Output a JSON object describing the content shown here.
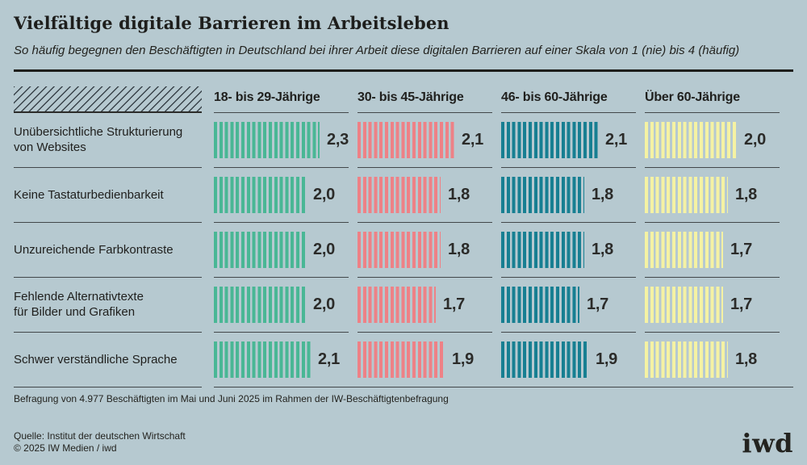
{
  "title": "Vielfältige digitale Barrieren im Arbeitsleben",
  "subtitle": "So häufig begegnen den Beschäftigten in Deutschland bei ihrer Arbeit diese digitalen Barrieren auf einer Skala von 1 (nie) bis 4 (häufig)",
  "chart_data": {
    "type": "bar",
    "title": "Vielfältige digitale Barrieren im Arbeitsleben",
    "subtitle": "So häufig begegnen den Beschäftigten in Deutschland bei ihrer Arbeit diese digitalen Barrieren auf einer Skala von 1 (nie) bis 4 (häufig)",
    "value_scale": {
      "min": 1,
      "min_label": "nie",
      "max": 4,
      "max_label": "häufig"
    },
    "groups": [
      "18- bis 29-Jährige",
      "30- bis 45-Jährige",
      "46- bis 60-Jährige",
      "Über 60-Jährige"
    ],
    "group_colors": [
      "#49b795",
      "#ee8186",
      "#177f92",
      "#f5f2a3"
    ],
    "categories": [
      "Unübersichtliche Strukturierung\nvon Websites",
      "Keine Tastaturbedienbarkeit",
      "Unzureichende Farbkontraste",
      "Fehlende Alternativtexte\nfür Bilder und Grafiken",
      "Schwer verständliche Sprache"
    ],
    "series": [
      {
        "name": "18- bis 29-Jährige",
        "values": [
          2.3,
          2.0,
          2.0,
          2.0,
          2.1
        ]
      },
      {
        "name": "30- bis 45-Jährige",
        "values": [
          2.1,
          1.8,
          1.8,
          1.7,
          1.9
        ]
      },
      {
        "name": "46- bis 60-Jährige",
        "values": [
          2.1,
          1.8,
          1.8,
          1.7,
          1.9
        ]
      },
      {
        "name": "Über 60-Jährige",
        "values": [
          2.0,
          1.8,
          1.7,
          1.7,
          1.8
        ]
      }
    ],
    "value_labels_format": "decimal-comma",
    "legend_position": "column-headers",
    "grid": false
  },
  "footer": {
    "note": "Befragung von 4.977 Beschäftigten im Mai und Juni 2025 im Rahmen der IW-Beschäftigtenbefragung",
    "source": "Quelle: Institut der deutschen Wirtschaft",
    "copyright": "© 2025 IW Medien / iwd",
    "logo": "iwd"
  },
  "colors": {
    "background": "#b6c9d0",
    "text": "#20201e",
    "divider": "#42474a",
    "bar_green": "#49b795",
    "bar_red": "#ee8186",
    "bar_teal": "#177f92",
    "bar_yellow": "#f5f2a3"
  }
}
